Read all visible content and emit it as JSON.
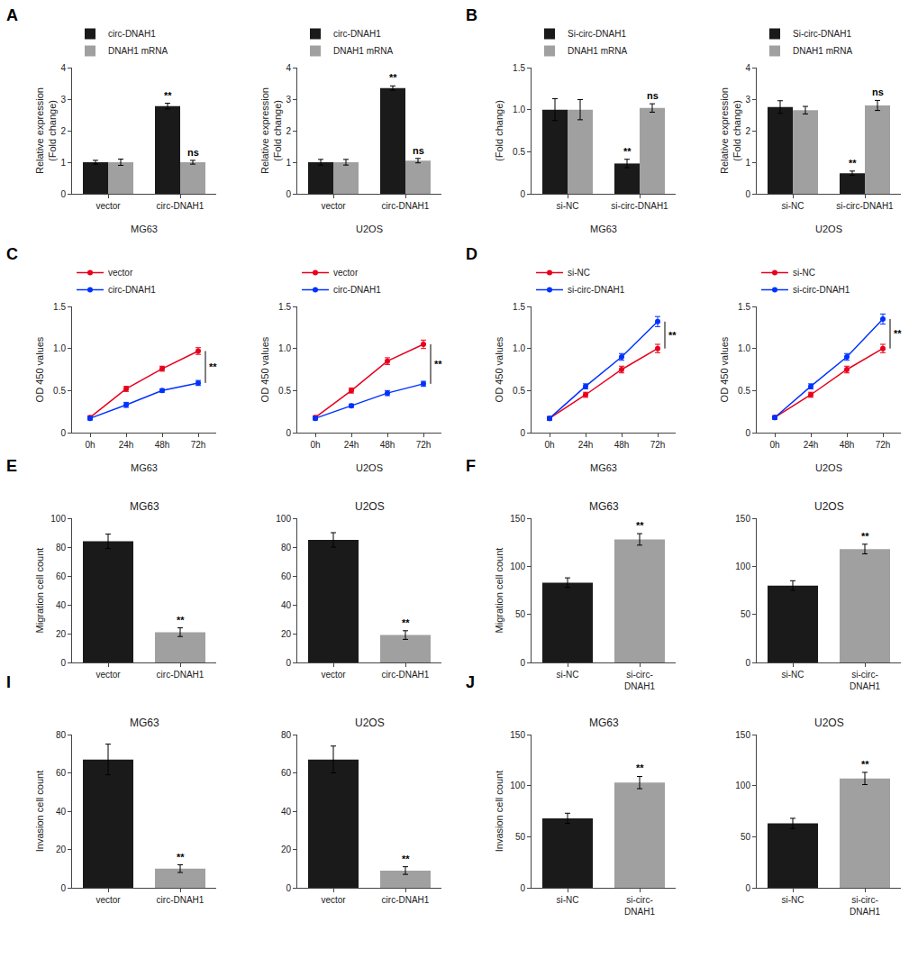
{
  "chart_data": [
    {
      "type": "bar",
      "xlabel": "MG63",
      "ylabel": "Relative expression\n(Fold change)",
      "categories": [
        "vector",
        "circ-DNAH1"
      ],
      "series": [
        {
          "name": "circ-DNAH1",
          "color": "#1a1a1a",
          "values": [
            1.0,
            2.78
          ],
          "errors": [
            0.06,
            0.09
          ]
        },
        {
          "name": "DNAH1 mRNA",
          "color": "#a0a0a0",
          "values": [
            1.0,
            1.0
          ],
          "errors": [
            0.1,
            0.06
          ]
        }
      ],
      "ylim": [
        0,
        4
      ],
      "yticks": [
        0,
        1,
        2,
        3,
        4
      ],
      "grid": false,
      "legend": "top",
      "annotations": [
        {
          "text": "A"
        },
        {
          "text": "**",
          "x": "circ-DNAH1",
          "series": "circ-DNAH1"
        },
        {
          "text": "ns",
          "x": "circ-DNAH1",
          "series": "DNAH1 mRNA"
        }
      ]
    },
    {
      "type": "bar",
      "xlabel": "U2OS",
      "ylabel": "Relative expression\n(Fold change)",
      "categories": [
        "vector",
        "circ-DNAH1"
      ],
      "series": [
        {
          "name": "circ-DNAH1",
          "color": "#1a1a1a",
          "values": [
            1.0,
            3.35
          ],
          "errors": [
            0.09,
            0.07
          ]
        },
        {
          "name": "DNAH1 mRNA",
          "color": "#a0a0a0",
          "values": [
            1.0,
            1.05
          ],
          "errors": [
            0.09,
            0.07
          ]
        }
      ],
      "ylim": [
        0,
        4
      ],
      "yticks": [
        0,
        1,
        2,
        3,
        4
      ],
      "grid": false,
      "legend": "top",
      "annotations": [
        {
          "text": "**",
          "x": "circ-DNAH1",
          "series": "circ-DNAH1"
        },
        {
          "text": "ns",
          "x": "circ-DNAH1",
          "series": "DNAH1 mRNA"
        }
      ]
    },
    {
      "type": "bar",
      "xlabel": "MG63",
      "ylabel": "(Fold change)",
      "categories": [
        "si-NC",
        "si-circ-DNAH1"
      ],
      "series": [
        {
          "name": "Si-circ-DNAH1",
          "color": "#1a1a1a",
          "values": [
            1.0,
            0.36
          ],
          "errors": [
            0.13,
            0.05
          ]
        },
        {
          "name": "DNAH1 mRNA",
          "color": "#a0a0a0",
          "values": [
            1.0,
            1.02
          ],
          "errors": [
            0.12,
            0.05
          ]
        }
      ],
      "ylim": [
        0,
        1.5
      ],
      "yticks": [
        0,
        0.5,
        {
          "value": 1.0,
          "label": "1.0"
        },
        1.5
      ],
      "grid": false,
      "legend": "top",
      "annotations": [
        {
          "text": "B"
        },
        {
          "text": "**",
          "x": "si-circ-DNAH1",
          "series": "Si-circ-DNAH1"
        },
        {
          "text": "ns",
          "x": "si-circ-DNAH1",
          "series": "DNAH1 mRNA"
        }
      ]
    },
    {
      "type": "bar",
      "xlabel": "U2OS",
      "ylabel": "Relative expression\n(Fold change)",
      "categories": [
        "si-NC",
        "si-circ-DNAH1"
      ],
      "series": [
        {
          "name": "Si-circ-DNAH1",
          "color": "#1a1a1a",
          "values": [
            2.75,
            0.65
          ],
          "errors": [
            0.2,
            0.07
          ]
        },
        {
          "name": "DNAH1 mRNA",
          "color": "#a0a0a0",
          "values": [
            2.65,
            2.8
          ],
          "errors": [
            0.12,
            0.16
          ]
        }
      ],
      "ylim": [
        0,
        4
      ],
      "yticks": [
        0,
        1,
        2,
        3,
        4
      ],
      "grid": false,
      "legend": "top",
      "annotations": [
        {
          "text": "**",
          "x": "si-circ-DNAH1",
          "series": "Si-circ-DNAH1"
        },
        {
          "text": "ns",
          "x": "si-circ-DNAH1",
          "series": "DNAH1 mRNA"
        }
      ]
    },
    {
      "type": "line",
      "marker": "circle",
      "xlabel": "MG63",
      "ylabel": "OD 450 values",
      "categories": [
        "0h",
        "24h",
        "48h",
        "72h"
      ],
      "series": [
        {
          "name": "vector",
          "color": "#e8001c",
          "values": [
            0.18,
            0.52,
            0.76,
            0.97
          ],
          "errors": [
            0.02,
            0.03,
            0.03,
            0.04
          ]
        },
        {
          "name": "circ-DNAH1",
          "color": "#0032ff",
          "values": [
            0.17,
            0.33,
            0.5,
            0.59
          ],
          "errors": [
            0.02,
            0.03,
            0.02,
            0.03
          ]
        }
      ],
      "ylim": [
        0,
        1.5
      ],
      "yticks": [
        0,
        0.5,
        {
          "value": 1.0,
          "label": "1.0"
        },
        1.5
      ],
      "grid": false,
      "legend": "top",
      "annotations": [
        {
          "text": "C"
        },
        {
          "text": "**",
          "x": "72h",
          "series": [
            "vector",
            "circ-DNAH1"
          ]
        }
      ]
    },
    {
      "type": "line",
      "marker": "circle",
      "xlabel": "U2OS",
      "ylabel": "OD 450 values",
      "categories": [
        "0h",
        "24h",
        "48h",
        "72h"
      ],
      "series": [
        {
          "name": "vector",
          "color": "#e8001c",
          "values": [
            0.18,
            0.5,
            0.85,
            1.05
          ],
          "errors": [
            0.02,
            0.03,
            0.04,
            0.05
          ]
        },
        {
          "name": "circ-DNAH1",
          "color": "#0032ff",
          "values": [
            0.17,
            0.32,
            0.47,
            0.58
          ],
          "errors": [
            0.02,
            0.02,
            0.03,
            0.03
          ]
        }
      ],
      "ylim": [
        0,
        1.5
      ],
      "yticks": [
        0,
        0.5,
        {
          "value": 1.0,
          "label": "1.0"
        },
        1.5
      ],
      "grid": false,
      "legend": "top",
      "annotations": [
        {
          "text": "**",
          "x": "72h",
          "series": [
            "vector",
            "circ-DNAH1"
          ]
        }
      ]
    },
    {
      "type": "line",
      "marker": "circle",
      "xlabel": "MG63",
      "ylabel": "OD 450 values",
      "categories": [
        "0h",
        "24h",
        "48h",
        "72h"
      ],
      "series": [
        {
          "name": "si-NC",
          "color": "#e8001c",
          "values": [
            0.17,
            0.45,
            0.75,
            1.0
          ],
          "errors": [
            0.02,
            0.03,
            0.04,
            0.05
          ]
        },
        {
          "name": "si-circ-DNAH1",
          "color": "#0032ff",
          "values": [
            0.17,
            0.55,
            0.9,
            1.32
          ],
          "errors": [
            0.02,
            0.03,
            0.04,
            0.06
          ]
        }
      ],
      "ylim": [
        0,
        1.5
      ],
      "yticks": [
        0,
        0.5,
        {
          "value": 1.0,
          "label": "1.0"
        },
        1.5
      ],
      "grid": false,
      "legend": "top",
      "annotations": [
        {
          "text": "D"
        },
        {
          "text": "**",
          "x": "72h",
          "series": [
            "si-NC",
            "si-circ-DNAH1"
          ]
        }
      ]
    },
    {
      "type": "line",
      "marker": "circle",
      "xlabel": "U2OS",
      "ylabel": "OD 450 values",
      "categories": [
        "0h",
        "24h",
        "48h",
        "72h"
      ],
      "series": [
        {
          "name": "si-NC",
          "color": "#e8001c",
          "values": [
            0.18,
            0.45,
            0.75,
            1.0
          ],
          "errors": [
            0.02,
            0.03,
            0.04,
            0.05
          ]
        },
        {
          "name": "si-circ-DNAH1",
          "color": "#0032ff",
          "values": [
            0.18,
            0.55,
            0.9,
            1.35
          ],
          "errors": [
            0.02,
            0.03,
            0.04,
            0.06
          ]
        }
      ],
      "ylim": [
        0,
        1.5
      ],
      "yticks": [
        0,
        0.5,
        {
          "value": 1.0,
          "label": "1.0"
        },
        1.5
      ],
      "grid": false,
      "legend": "top",
      "annotations": [
        {
          "text": "**",
          "x": "72h",
          "series": [
            "si-NC",
            "si-circ-DNAH1"
          ]
        }
      ]
    },
    {
      "type": "bar",
      "title": "MG63",
      "ylabel": "Migration cell count",
      "categories": [
        "vector",
        "circ-DNAH1"
      ],
      "values": [
        84,
        21
      ],
      "errors": [
        5,
        3
      ],
      "colors": [
        "#1a1a1a",
        "#a0a0a0"
      ],
      "ylim": [
        0,
        100
      ],
      "yticks": [
        0,
        20,
        40,
        60,
        80,
        100
      ],
      "grid": false,
      "annotations": [
        {
          "text": "E"
        },
        {
          "text": "**",
          "x": "circ-DNAH1"
        }
      ]
    },
    {
      "type": "bar",
      "title": "U2OS",
      "categories": [
        "vector",
        "circ-DNAH1"
      ],
      "values": [
        85,
        19
      ],
      "errors": [
        5,
        3
      ],
      "colors": [
        "#1a1a1a",
        "#a0a0a0"
      ],
      "ylim": [
        0,
        100
      ],
      "yticks": [
        0,
        20,
        40,
        60,
        80,
        100
      ],
      "grid": false,
      "annotations": [
        {
          "text": "**",
          "x": "circ-DNAH1"
        }
      ]
    },
    {
      "type": "bar",
      "title": "MG63",
      "ylabel": "Migration cell count",
      "categories": [
        "si-NC",
        "si-circ-\nDNAH1"
      ],
      "values": [
        83,
        128
      ],
      "errors": [
        5,
        6
      ],
      "colors": [
        "#1a1a1a",
        "#a0a0a0"
      ],
      "ylim": [
        0,
        150
      ],
      "yticks": [
        0,
        50,
        100,
        150
      ],
      "grid": false,
      "annotations": [
        {
          "text": "F"
        },
        {
          "text": "**",
          "x": "si-circ-\nDNAH1"
        }
      ]
    },
    {
      "type": "bar",
      "title": "U2OS",
      "categories": [
        "si-NC",
        "si-circ-\nDNAH1"
      ],
      "values": [
        80,
        118
      ],
      "errors": [
        5,
        5
      ],
      "colors": [
        "#1a1a1a",
        "#a0a0a0"
      ],
      "ylim": [
        0,
        150
      ],
      "yticks": [
        0,
        50,
        100,
        150
      ],
      "grid": false,
      "annotations": [
        {
          "text": "**",
          "x": "si-circ-\nDNAH1"
        }
      ]
    },
    {
      "type": "bar",
      "title": "MG63",
      "ylabel": "Invasion cell count",
      "categories": [
        "vector",
        "circ-DNAH1"
      ],
      "values": [
        67,
        10
      ],
      "errors": [
        8,
        2
      ],
      "colors": [
        "#1a1a1a",
        "#a0a0a0"
      ],
      "ylim": [
        0,
        80
      ],
      "yticks": [
        0,
        20,
        40,
        60,
        80
      ],
      "grid": false,
      "annotations": [
        {
          "text": "I"
        },
        {
          "text": "**",
          "x": "circ-DNAH1"
        }
      ]
    },
    {
      "type": "bar",
      "title": "U2OS",
      "categories": [
        "vector",
        "circ-DNAH1"
      ],
      "values": [
        67,
        9
      ],
      "errors": [
        7,
        2
      ],
      "colors": [
        "#1a1a1a",
        "#a0a0a0"
      ],
      "ylim": [
        0,
        80
      ],
      "yticks": [
        0,
        20,
        40,
        60,
        80
      ],
      "grid": false,
      "annotations": [
        {
          "text": "**",
          "x": "circ-DNAH1"
        }
      ]
    },
    {
      "type": "bar",
      "title": "MG63",
      "ylabel": "Invasion cell count",
      "categories": [
        "si-NC",
        "si-circ-\nDNAH1"
      ],
      "values": [
        68,
        103
      ],
      "errors": [
        5,
        6
      ],
      "colors": [
        "#1a1a1a",
        "#a0a0a0"
      ],
      "ylim": [
        0,
        150
      ],
      "yticks": [
        0,
        50,
        100,
        150
      ],
      "grid": false,
      "annotations": [
        {
          "text": "J"
        },
        {
          "text": "**",
          "x": "si-circ-\nDNAH1"
        }
      ]
    },
    {
      "type": "bar",
      "title": "U2OS",
      "categories": [
        "si-NC",
        "si-circ-\nDNAH1"
      ],
      "values": [
        63,
        107
      ],
      "errors": [
        5,
        6
      ],
      "colors": [
        "#1a1a1a",
        "#a0a0a0"
      ],
      "ylim": [
        0,
        150
      ],
      "yticks": [
        0,
        50,
        100,
        150
      ],
      "grid": false,
      "annotations": [
        {
          "text": "**",
          "x": "si-circ-\nDNAH1"
        }
      ]
    }
  ]
}
